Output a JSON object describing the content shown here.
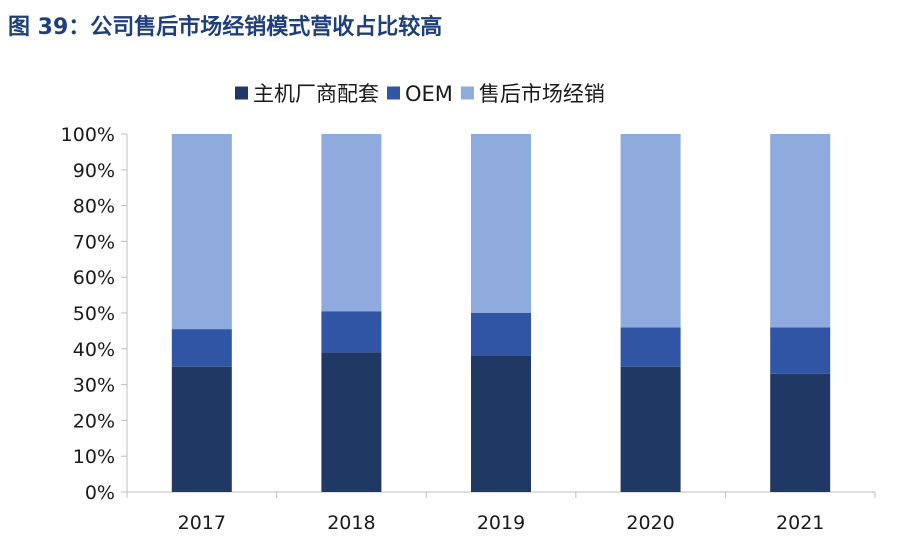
{
  "figure": {
    "title": "图 39：公司售后市场经销模式营收占比较高"
  },
  "colors": {
    "title": "#1f3f7a",
    "oem_main": "#203864",
    "oem": "#2f55a4",
    "aftermarket": "#8faadc",
    "axis": "#bfbfbf"
  },
  "chart_data": {
    "type": "bar",
    "stacked": true,
    "title": "",
    "xlabel": "",
    "ylabel": "",
    "categories": [
      "2017",
      "2018",
      "2019",
      "2020",
      "2021"
    ],
    "series": [
      {
        "name": "主机厂商配套",
        "color": "#203864",
        "values": [
          35,
          39,
          38,
          35,
          33
        ]
      },
      {
        "name": "OEM",
        "color": "#2f55a4",
        "values": [
          10.5,
          11.5,
          12,
          11,
          13
        ]
      },
      {
        "name": "售后市场经销",
        "color": "#8faadc",
        "values": [
          54.5,
          49.5,
          50,
          54,
          54
        ]
      }
    ],
    "ylim": [
      0,
      100
    ],
    "ytick_step": 10,
    "ytick_labels": [
      "0%",
      "10%",
      "20%",
      "30%",
      "40%",
      "50%",
      "60%",
      "70%",
      "80%",
      "90%",
      "100%"
    ],
    "grid": false,
    "legend_position": "top-center"
  }
}
